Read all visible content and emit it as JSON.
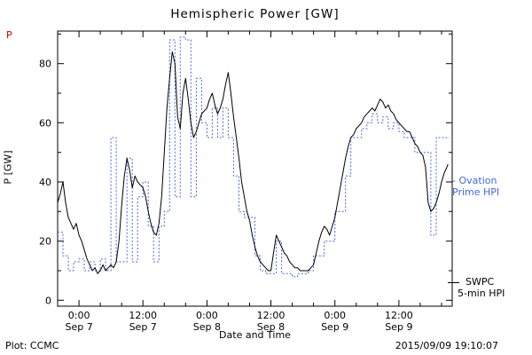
{
  "title": "Hemispheric Power [GW]",
  "corner_mark": "P",
  "footer": {
    "plot_credit": "Plot: CCMC",
    "xaxis_title": "Date and Time",
    "timestamp": "2015/09/09 19:10:07"
  },
  "legend": {
    "ovation_line1": "- Ovation",
    "ovation_line2": "Prime HPI",
    "swpc_line1": "SWPC",
    "swpc_line2": "5-min HPI"
  },
  "colors": {
    "ovation": "#4169E1",
    "swpc": "#000000",
    "corner_mark": "#d40000",
    "frame": "#000000"
  },
  "chart_data": {
    "type": "line",
    "title": "Hemispheric Power [GW]",
    "xlabel": "Date and Time",
    "ylabel": "P [GW]",
    "ylim": [
      0,
      90
    ],
    "yticks_major": [
      0,
      20,
      40,
      60,
      80
    ],
    "yticks_minor": [
      10,
      30,
      50,
      70,
      90
    ],
    "xlim_hours": [
      0,
      74
    ],
    "x_epoch_note": "hours after 2015-09-06 20:00 UT",
    "xticks": [
      {
        "t": 4,
        "time": "0:00",
        "date": "Sep 7"
      },
      {
        "t": 16,
        "time": "12:00",
        "date": "Sep 7"
      },
      {
        "t": 28,
        "time": "0:00",
        "date": "Sep 8"
      },
      {
        "t": 40,
        "time": "12:00",
        "date": "Sep 8"
      },
      {
        "t": 52,
        "time": "0:00",
        "date": "Sep 9"
      },
      {
        "t": 64,
        "time": "12:00",
        "date": "Sep 9"
      }
    ],
    "xtick_minor_step": 4,
    "grid": false,
    "legend_position": "right-outside",
    "series": [
      {
        "name": "Ovation Prime HPI",
        "style": "steps",
        "color": "#4169E1",
        "dash": "2,2",
        "hold_until": 73.5,
        "points": [
          [
            0,
            23
          ],
          [
            1,
            15
          ],
          [
            2,
            10
          ],
          [
            3,
            13
          ],
          [
            4,
            14
          ],
          [
            5,
            10
          ],
          [
            6,
            13
          ],
          [
            7,
            10
          ],
          [
            8,
            14
          ],
          [
            9,
            10
          ],
          [
            10,
            55
          ],
          [
            11,
            13
          ],
          [
            12,
            13
          ],
          [
            13,
            48
          ],
          [
            14,
            13
          ],
          [
            15,
            35
          ],
          [
            16,
            40
          ],
          [
            17,
            25
          ],
          [
            18,
            13
          ],
          [
            19,
            25
          ],
          [
            20,
            30
          ],
          [
            21,
            88
          ],
          [
            22,
            35
          ],
          [
            23,
            89
          ],
          [
            24,
            88
          ],
          [
            25,
            35
          ],
          [
            26,
            75
          ],
          [
            27,
            60
          ],
          [
            28,
            55
          ],
          [
            29,
            65
          ],
          [
            30,
            55
          ],
          [
            31,
            65
          ],
          [
            32,
            55
          ],
          [
            33,
            42
          ],
          [
            34,
            30
          ],
          [
            35,
            28
          ],
          [
            36,
            28
          ],
          [
            37,
            15
          ],
          [
            38,
            10
          ],
          [
            39,
            9
          ],
          [
            40,
            9
          ],
          [
            41,
            20
          ],
          [
            42,
            9
          ],
          [
            43,
            9
          ],
          [
            44,
            8
          ],
          [
            45,
            9
          ],
          [
            46,
            9
          ],
          [
            47,
            10
          ],
          [
            48,
            15
          ],
          [
            49,
            15
          ],
          [
            50,
            20
          ],
          [
            51,
            20
          ],
          [
            52,
            30
          ],
          [
            53,
            30
          ],
          [
            54,
            42
          ],
          [
            55,
            55
          ],
          [
            56,
            55
          ],
          [
            57,
            58
          ],
          [
            58,
            60
          ],
          [
            59,
            63
          ],
          [
            60,
            60
          ],
          [
            61,
            62
          ],
          [
            62,
            58
          ],
          [
            63,
            60
          ],
          [
            64,
            57
          ],
          [
            65,
            55
          ],
          [
            66,
            55
          ],
          [
            67,
            50
          ],
          [
            68,
            50
          ],
          [
            69,
            50
          ],
          [
            70,
            22
          ],
          [
            71,
            55
          ]
        ]
      },
      {
        "name": "SWPC 5-min HPI",
        "style": "solid",
        "color": "#000000",
        "points": [
          [
            0,
            33
          ],
          [
            0.5,
            36
          ],
          [
            1,
            40
          ],
          [
            1.5,
            33
          ],
          [
            2,
            28
          ],
          [
            2.5,
            26
          ],
          [
            3,
            24
          ],
          [
            3.5,
            26
          ],
          [
            4,
            22
          ],
          [
            4.5,
            20
          ],
          [
            5,
            17
          ],
          [
            5.5,
            14
          ],
          [
            6,
            12
          ],
          [
            6.5,
            10
          ],
          [
            7,
            11
          ],
          [
            7.5,
            9
          ],
          [
            8,
            10
          ],
          [
            8.5,
            12
          ],
          [
            9,
            10
          ],
          [
            9.5,
            11
          ],
          [
            10,
            12
          ],
          [
            10.5,
            11
          ],
          [
            11,
            13
          ],
          [
            11.5,
            20
          ],
          [
            12,
            32
          ],
          [
            12.5,
            42
          ],
          [
            13,
            48
          ],
          [
            13.5,
            44
          ],
          [
            14,
            38
          ],
          [
            14.5,
            42
          ],
          [
            15,
            40
          ],
          [
            15.5,
            39
          ],
          [
            16,
            38
          ],
          [
            16.5,
            35
          ],
          [
            17,
            30
          ],
          [
            17.5,
            26
          ],
          [
            18,
            23
          ],
          [
            18.5,
            22
          ],
          [
            19,
            26
          ],
          [
            19.5,
            35
          ],
          [
            20,
            50
          ],
          [
            20.5,
            65
          ],
          [
            21,
            75
          ],
          [
            21.5,
            84
          ],
          [
            22,
            80
          ],
          [
            22.5,
            62
          ],
          [
            23,
            58
          ],
          [
            23.5,
            70
          ],
          [
            24,
            75
          ],
          [
            24.5,
            68
          ],
          [
            25,
            60
          ],
          [
            25.5,
            55
          ],
          [
            26,
            57
          ],
          [
            26.5,
            60
          ],
          [
            27,
            63
          ],
          [
            27.5,
            64
          ],
          [
            28,
            65
          ],
          [
            28.5,
            68
          ],
          [
            29,
            70
          ],
          [
            29.5,
            66
          ],
          [
            30,
            63
          ],
          [
            30.5,
            65
          ],
          [
            31,
            68
          ],
          [
            31.5,
            73
          ],
          [
            32,
            77
          ],
          [
            32.5,
            70
          ],
          [
            33,
            62
          ],
          [
            33.5,
            55
          ],
          [
            34,
            48
          ],
          [
            34.5,
            40
          ],
          [
            35,
            35
          ],
          [
            35.5,
            30
          ],
          [
            36,
            27
          ],
          [
            36.5,
            22
          ],
          [
            37,
            18
          ],
          [
            37.5,
            15
          ],
          [
            38,
            13
          ],
          [
            38.5,
            12
          ],
          [
            39,
            11
          ],
          [
            39.5,
            10
          ],
          [
            40,
            10
          ],
          [
            40.5,
            16
          ],
          [
            41,
            22
          ],
          [
            41.5,
            20
          ],
          [
            42,
            18
          ],
          [
            42.5,
            16
          ],
          [
            43,
            15
          ],
          [
            43.5,
            13
          ],
          [
            44,
            12
          ],
          [
            44.5,
            11
          ],
          [
            45,
            11
          ],
          [
            45.5,
            10
          ],
          [
            46,
            10
          ],
          [
            46.5,
            10
          ],
          [
            47,
            10
          ],
          [
            47.5,
            11
          ],
          [
            48,
            12
          ],
          [
            48.5,
            16
          ],
          [
            49,
            20
          ],
          [
            49.5,
            23
          ],
          [
            50,
            25
          ],
          [
            50.5,
            24
          ],
          [
            51,
            22
          ],
          [
            51.5,
            25
          ],
          [
            52,
            28
          ],
          [
            52.5,
            33
          ],
          [
            53,
            38
          ],
          [
            53.5,
            43
          ],
          [
            54,
            48
          ],
          [
            54.5,
            52
          ],
          [
            55,
            55
          ],
          [
            55.5,
            56
          ],
          [
            56,
            58
          ],
          [
            56.5,
            59
          ],
          [
            57,
            60
          ],
          [
            57.5,
            62
          ],
          [
            58,
            63
          ],
          [
            58.5,
            64
          ],
          [
            59,
            65
          ],
          [
            59.5,
            64
          ],
          [
            60,
            66
          ],
          [
            60.5,
            68
          ],
          [
            61,
            67
          ],
          [
            61.5,
            65
          ],
          [
            62,
            66
          ],
          [
            62.5,
            64
          ],
          [
            63,
            63
          ],
          [
            63.5,
            61
          ],
          [
            64,
            60
          ],
          [
            64.5,
            59
          ],
          [
            65,
            58
          ],
          [
            65.5,
            57
          ],
          [
            66,
            57
          ],
          [
            66.5,
            55
          ],
          [
            67,
            53
          ],
          [
            67.5,
            52
          ],
          [
            68,
            50
          ],
          [
            68.5,
            49
          ],
          [
            69,
            45
          ],
          [
            69.5,
            33
          ],
          [
            70,
            30
          ],
          [
            70.5,
            31
          ],
          [
            71,
            33
          ],
          [
            71.5,
            36
          ],
          [
            72,
            40
          ],
          [
            72.5,
            43
          ],
          [
            73,
            45
          ],
          [
            73.2,
            46
          ]
        ]
      }
    ]
  }
}
